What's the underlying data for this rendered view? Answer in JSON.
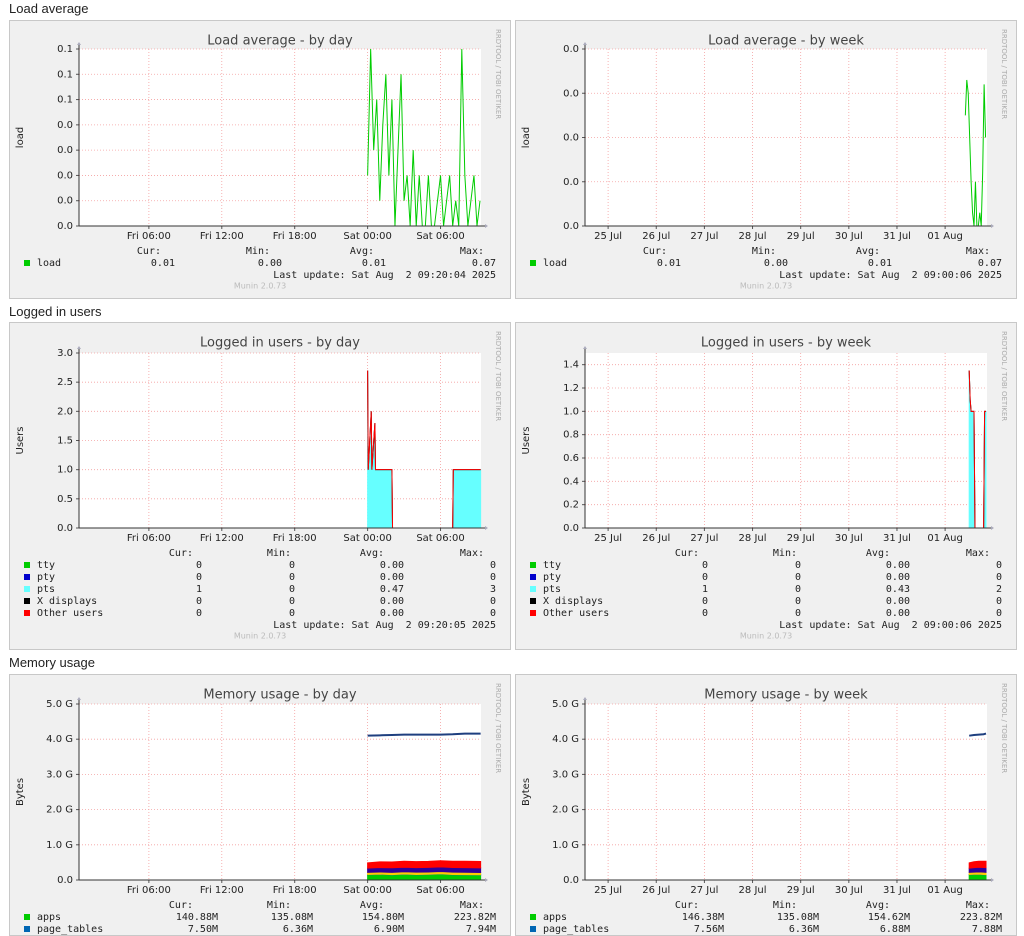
{
  "sections": [
    "Load average",
    "Logged in users",
    "Memory usage"
  ],
  "chart_data": [
    {
      "type": "line",
      "title": "Load average - by day",
      "ylabel": "load",
      "side_text": "RRDTOOL / TOBI OETIKER",
      "footer": "Munin 2.0.73",
      "stat_labels": [
        "Cur:",
        "Min:",
        "Avg:",
        "Max:"
      ],
      "last_update": "Last update: Sat Aug  2 09:20:04 2025",
      "xlim": [
        0.25,
        33.33
      ],
      "xticks": [
        {
          "value": 6,
          "label": "Fri 06:00"
        },
        {
          "value": 12,
          "label": "Fri 12:00"
        },
        {
          "value": 18,
          "label": "Fri 18:00"
        },
        {
          "value": 24,
          "label": "Sat 00:00"
        },
        {
          "value": 30,
          "label": "Sat 06:00"
        }
      ],
      "ylim": [
        0,
        0.07
      ],
      "yticks": [
        {
          "value": 0,
          "label": "0.0"
        },
        {
          "value": 0.01,
          "label": "0.0"
        },
        {
          "value": 0.02,
          "label": "0.0"
        },
        {
          "value": 0.03,
          "label": "0.0"
        },
        {
          "value": 0.04,
          "label": "0.0"
        },
        {
          "value": 0.05,
          "label": "0.1"
        },
        {
          "value": 0.06,
          "label": "0.1"
        },
        {
          "value": 0.07,
          "label": "0.1"
        }
      ],
      "grid": true,
      "x": [
        24,
        24.25,
        24.5,
        24.75,
        25,
        25.25,
        25.5,
        25.75,
        26,
        26.25,
        26.5,
        26.75,
        27,
        27.25,
        27.5,
        27.75,
        28,
        28.25,
        28.5,
        28.75,
        29,
        29.25,
        29.5,
        29.75,
        30,
        30.25,
        30.5,
        30.75,
        31,
        31.25,
        31.5,
        31.75,
        32,
        32.25,
        32.5,
        32.75,
        33,
        33.25
      ],
      "series": [
        {
          "name": "load",
          "color": "#00cc00",
          "stats": [
            "0.01",
            "0.00",
            "0.01",
            "0.07"
          ],
          "values": [
            0.02,
            0.07,
            0.03,
            0.05,
            0.01,
            0.04,
            0.06,
            0.02,
            0.05,
            0.0,
            0.03,
            0.06,
            0.01,
            0.02,
            0.0,
            0.03,
            0.0,
            0.02,
            0.0,
            0.0,
            0.02,
            0.0,
            0.0,
            0.01,
            0.02,
            0.0,
            0.01,
            0.02,
            0.0,
            0.01,
            0.0,
            0.07,
            0.02,
            0.0,
            0.01,
            0.02,
            0.0,
            0.01
          ]
        }
      ]
    },
    {
      "type": "line",
      "title": "Load average - by week",
      "ylabel": "load",
      "side_text": "RRDTOOL / TOBI OETIKER",
      "footer": "Munin 2.0.73",
      "stat_labels": [
        "Cur:",
        "Min:",
        "Avg:",
        "Max:"
      ],
      "last_update": "Last update: Sat Aug  2 09:00:06 2025",
      "xlim": [
        -0.48,
        7.87
      ],
      "xticks": [
        {
          "value": 0,
          "label": "25 Jul"
        },
        {
          "value": 1,
          "label": "26 Jul"
        },
        {
          "value": 2,
          "label": "27 Jul"
        },
        {
          "value": 3,
          "label": "28 Jul"
        },
        {
          "value": 4,
          "label": "29 Jul"
        },
        {
          "value": 5,
          "label": "30 Jul"
        },
        {
          "value": 6,
          "label": "31 Jul"
        },
        {
          "value": 7,
          "label": "01 Aug"
        }
      ],
      "ylim": [
        0,
        0.04
      ],
      "yticks": [
        {
          "value": 0,
          "label": "0.0"
        },
        {
          "value": 0.01,
          "label": "0.0"
        },
        {
          "value": 0.02,
          "label": "0.0"
        },
        {
          "value": 0.03,
          "label": "0.0"
        },
        {
          "value": 0.04,
          "label": "0.0"
        }
      ],
      "grid": true,
      "x": [
        7.42,
        7.45,
        7.48,
        7.51,
        7.54,
        7.57,
        7.6,
        7.63,
        7.66,
        7.69,
        7.72,
        7.75,
        7.78,
        7.81,
        7.84
      ],
      "series": [
        {
          "name": "load",
          "color": "#00cc00",
          "stats": [
            "0.01",
            "0.00",
            "0.01",
            "0.07"
          ],
          "values": [
            0.025,
            0.033,
            0.03,
            0.02,
            0.01,
            0.003,
            0.0,
            0.01,
            0.0,
            0.0,
            0.003,
            0.0,
            0.012,
            0.032,
            0.02
          ]
        }
      ]
    },
    {
      "type": "area",
      "stacked": true,
      "title": "Logged in users - by day",
      "ylabel": "Users",
      "side_text": "RRDTOOL / TOBI OETIKER",
      "footer": "Munin 2.0.73",
      "stat_labels": [
        "Cur:",
        "Min:",
        "Avg:",
        "Max:"
      ],
      "last_update": "Last update: Sat Aug  2 09:20:05 2025",
      "xlim": [
        0.25,
        33.33
      ],
      "xticks": [
        {
          "value": 6,
          "label": "Fri 06:00"
        },
        {
          "value": 12,
          "label": "Fri 12:00"
        },
        {
          "value": 18,
          "label": "Fri 18:00"
        },
        {
          "value": 24,
          "label": "Sat 00:00"
        },
        {
          "value": 30,
          "label": "Sat 06:00"
        }
      ],
      "ylim": [
        0,
        3
      ],
      "yticks": [
        {
          "value": 0,
          "label": "0.0"
        },
        0.5,
        {
          "value": 1,
          "label": "1.0"
        },
        1.5,
        {
          "value": 2,
          "label": "2.0"
        },
        2.5,
        {
          "value": 3,
          "label": "3.0"
        }
      ],
      "grid": true,
      "x": [
        24,
        24.05,
        24.3,
        24.35,
        24.6,
        24.65,
        26,
        26.05,
        31,
        31.05,
        33.3
      ],
      "series": [
        {
          "name": "tty",
          "color": "#00cc00",
          "stats": [
            "0",
            "0",
            "0.00",
            "0"
          ],
          "values": [
            0,
            0,
            0,
            0,
            0,
            0,
            0,
            0,
            0,
            0,
            0
          ]
        },
        {
          "name": "pty",
          "color": "#0000cc",
          "stats": [
            "0",
            "0",
            "0.00",
            "0"
          ],
          "values": [
            0,
            0,
            0,
            0,
            0,
            0,
            0,
            0,
            0,
            0,
            0
          ]
        },
        {
          "name": "pts",
          "color": "#66ffff",
          "stats": [
            "1",
            "0",
            "0.47",
            "3"
          ],
          "values": [
            2.7,
            1.0,
            2.0,
            1.0,
            1.8,
            1.0,
            1.0,
            0,
            0,
            1.0,
            1.0
          ]
        },
        {
          "name": "X displays",
          "color": "#000000",
          "stats": [
            "0",
            "0",
            "0.00",
            "0"
          ],
          "values": [
            0,
            0,
            0,
            0,
            0,
            0,
            0,
            0,
            0,
            0,
            0
          ]
        },
        {
          "name": "Other users",
          "color": "#ff0000",
          "stats": [
            "0",
            "0",
            "0.00",
            "0"
          ],
          "values": [
            0,
            0,
            0,
            0,
            0,
            0,
            0,
            0,
            0,
            0,
            0
          ]
        }
      ]
    },
    {
      "type": "area",
      "stacked": true,
      "title": "Logged in users - by week",
      "ylabel": "Users",
      "side_text": "RRDTOOL / TOBI OETIKER",
      "footer": "Munin 2.0.73",
      "stat_labels": [
        "Cur:",
        "Min:",
        "Avg:",
        "Max:"
      ],
      "last_update": "Last update: Sat Aug  2 09:00:06 2025",
      "xlim": [
        -0.48,
        7.87
      ],
      "xticks": [
        {
          "value": 0,
          "label": "25 Jul"
        },
        {
          "value": 1,
          "label": "26 Jul"
        },
        {
          "value": 2,
          "label": "27 Jul"
        },
        {
          "value": 3,
          "label": "28 Jul"
        },
        {
          "value": 4,
          "label": "29 Jul"
        },
        {
          "value": 5,
          "label": "30 Jul"
        },
        {
          "value": 6,
          "label": "31 Jul"
        },
        {
          "value": 7,
          "label": "01 Aug"
        }
      ],
      "ylim": [
        0,
        1.5
      ],
      "yticks": [
        {
          "value": 0,
          "label": "0.0"
        },
        0.2,
        0.4,
        0.6,
        0.8,
        {
          "value": 1,
          "label": "1.0"
        },
        1.2,
        1.4
      ],
      "grid": true,
      "x": [
        7.5,
        7.52,
        7.54,
        7.6,
        7.62,
        7.8,
        7.82,
        7.85
      ],
      "series": [
        {
          "name": "tty",
          "color": "#00cc00",
          "stats": [
            "0",
            "0",
            "0.00",
            "0"
          ],
          "values": [
            0,
            0,
            0,
            0,
            0,
            0,
            0,
            0
          ]
        },
        {
          "name": "pty",
          "color": "#0000cc",
          "stats": [
            "0",
            "0",
            "0.00",
            "0"
          ],
          "values": [
            0,
            0,
            0,
            0,
            0,
            0,
            0,
            0
          ]
        },
        {
          "name": "pts",
          "color": "#66ffff",
          "stats": [
            "1",
            "0",
            "0.43",
            "2"
          ],
          "values": [
            1.35,
            1.1,
            1.0,
            1.0,
            0,
            0,
            1.0,
            1.0
          ]
        },
        {
          "name": "X displays",
          "color": "#000000",
          "stats": [
            "0",
            "0",
            "0.00",
            "0"
          ],
          "values": [
            0,
            0,
            0,
            0,
            0,
            0,
            0,
            0
          ]
        },
        {
          "name": "Other users",
          "color": "#ff0000",
          "stats": [
            "0",
            "0",
            "0.00",
            "0"
          ],
          "values": [
            0,
            0,
            0,
            0,
            0,
            0,
            0,
            0
          ]
        }
      ]
    },
    {
      "type": "area",
      "stacked": true,
      "title": "Memory usage - by day",
      "ylabel": "Bytes",
      "side_text": "RRDTOOL / TOBI OETIKER",
      "stat_labels": [
        "Cur:",
        "Min:",
        "Avg:",
        "Max:"
      ],
      "xlim": [
        0.25,
        33.33
      ],
      "xticks": [
        {
          "value": 6,
          "label": "Fri 06:00"
        },
        {
          "value": 12,
          "label": "Fri 12:00"
        },
        {
          "value": 18,
          "label": "Fri 18:00"
        },
        {
          "value": 24,
          "label": "Sat 00:00"
        },
        {
          "value": 30,
          "label": "Sat 06:00"
        }
      ],
      "ylim": [
        0,
        5000000000
      ],
      "yticks": [
        {
          "value": 0,
          "label": "0.0"
        },
        {
          "value": 1000000000,
          "label": "1.0 G"
        },
        {
          "value": 2000000000,
          "label": "2.0 G"
        },
        {
          "value": 3000000000,
          "label": "3.0 G"
        },
        {
          "value": 4000000000,
          "label": "4.0 G"
        },
        {
          "value": 5000000000,
          "label": "5.0 G"
        }
      ],
      "grid": true,
      "x": [
        24,
        25,
        26,
        27,
        28,
        29,
        30,
        31,
        32,
        33.3
      ],
      "series": [
        {
          "name": "apps",
          "color": "#00cc00",
          "stats": [
            "140.88M",
            "135.08M",
            "154.80M",
            "223.82M"
          ],
          "values": [
            150000000,
            160000000,
            145000000,
            165000000,
            150000000,
            155000000,
            170000000,
            150000000,
            145000000,
            140880000
          ]
        },
        {
          "name": "page_tables",
          "color": "#0066b3",
          "stats": [
            "7.50M",
            "6.36M",
            "6.90M",
            "7.94M"
          ],
          "values": [
            6500000,
            6800000,
            7000000,
            7200000,
            6900000,
            7000000,
            7400000,
            7300000,
            7500000,
            7500000
          ]
        },
        {
          "color": "#ffcc00",
          "values": [
            60000000,
            62000000,
            65000000,
            63000000,
            66000000,
            64000000,
            65000000,
            67000000,
            66000000,
            65000000
          ]
        },
        {
          "color": "#330099",
          "values": [
            120000000,
            125000000,
            130000000,
            128000000,
            130000000,
            132000000,
            130000000,
            131000000,
            133000000,
            132000000
          ]
        },
        {
          "color": "#ff0000",
          "values": [
            150000000,
            160000000,
            165000000,
            170000000,
            168000000,
            172000000,
            175000000,
            178000000,
            180000000,
            182000000
          ]
        },
        {
          "color": "#1f3f7f",
          "style": "line",
          "values": [
            4100000000,
            4110000000,
            4120000000,
            4130000000,
            4130000000,
            4130000000,
            4130000000,
            4140000000,
            4160000000,
            4160000000
          ]
        }
      ]
    },
    {
      "type": "area",
      "stacked": true,
      "title": "Memory usage - by week",
      "ylabel": "Bytes",
      "side_text": "RRDTOOL / TOBI OETIKER",
      "stat_labels": [
        "Cur:",
        "Min:",
        "Avg:",
        "Max:"
      ],
      "xlim": [
        -0.48,
        7.87
      ],
      "xticks": [
        {
          "value": 0,
          "label": "25 Jul"
        },
        {
          "value": 1,
          "label": "26 Jul"
        },
        {
          "value": 2,
          "label": "27 Jul"
        },
        {
          "value": 3,
          "label": "28 Jul"
        },
        {
          "value": 4,
          "label": "29 Jul"
        },
        {
          "value": 5,
          "label": "30 Jul"
        },
        {
          "value": 6,
          "label": "31 Jul"
        },
        {
          "value": 7,
          "label": "01 Aug"
        }
      ],
      "ylim": [
        0,
        5000000000
      ],
      "yticks": [
        {
          "value": 0,
          "label": "0.0"
        },
        {
          "value": 1000000000,
          "label": "1.0 G"
        },
        {
          "value": 2000000000,
          "label": "2.0 G"
        },
        {
          "value": 3000000000,
          "label": "3.0 G"
        },
        {
          "value": 4000000000,
          "label": "4.0 G"
        },
        {
          "value": 5000000000,
          "label": "5.0 G"
        }
      ],
      "grid": true,
      "x": [
        7.5,
        7.6,
        7.7,
        7.8,
        7.85
      ],
      "series": [
        {
          "name": "apps",
          "color": "#00cc00",
          "stats": [
            "146.38M",
            "135.08M",
            "154.62M",
            "223.82M"
          ],
          "values": [
            150000000,
            155000000,
            160000000,
            150000000,
            146380000
          ]
        },
        {
          "name": "page_tables",
          "color": "#0066b3",
          "stats": [
            "7.56M",
            "6.36M",
            "6.88M",
            "7.88M"
          ],
          "values": [
            6500000,
            7000000,
            7200000,
            7400000,
            7560000
          ]
        },
        {
          "color": "#ffcc00",
          "values": [
            60000000,
            63000000,
            65000000,
            66000000,
            65000000
          ]
        },
        {
          "color": "#330099",
          "values": [
            120000000,
            128000000,
            130000000,
            132000000,
            132000000
          ]
        },
        {
          "color": "#ff0000",
          "values": [
            150000000,
            165000000,
            170000000,
            178000000,
            182000000
          ]
        },
        {
          "color": "#1f3f7f",
          "style": "line",
          "values": [
            4100000000,
            4120000000,
            4130000000,
            4140000000,
            4160000000
          ]
        }
      ]
    }
  ]
}
